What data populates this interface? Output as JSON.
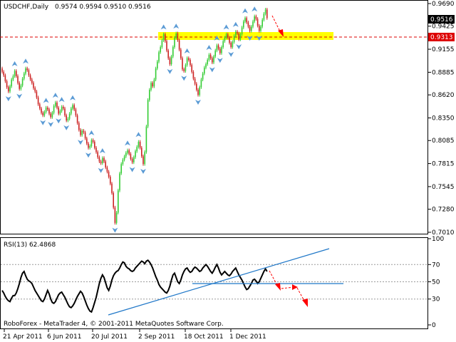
{
  "header": {
    "symbol_timeframe": "USDCHF,Daily",
    "ohlc": "0.9574 0.9594 0.9510 0.9516"
  },
  "main_price_labels": [
    "0.9690",
    "0.9425",
    "0.9155",
    "0.8885",
    "0.8620",
    "0.8350",
    "0.8085",
    "0.7815",
    "0.7545",
    "0.7280",
    "0.7010"
  ],
  "current_price_label": "0.9516",
  "support_price_label": "0.9313",
  "rsi": {
    "title": "RSI(13) 62.4868",
    "scale_labels": [
      "100",
      "70",
      "50",
      "30",
      "0"
    ]
  },
  "date_labels": [
    "21 Apr 2011",
    "6 Jun 2011",
    "20 Jul 2011",
    "2 Sep 2011",
    "18 Oct 2011",
    "1 Dec 2011"
  ],
  "watermark": "RoboForex - MetaTrader 4, © 2001-2011 MetaQuotes Software Corp.",
  "colors": {
    "bull": "#33cc33",
    "bear": "#cc2222",
    "fractal": "#5b9bd5",
    "support": "#dd0000",
    "highlight": "#ffff00",
    "trendline": "#1f77c8",
    "forecast_arrow": "#ff0000",
    "current_price_bg": "#000000",
    "support_price_bg": "#dd0000"
  },
  "chart_data": [
    {
      "type": "candlestick",
      "title": "USDCHF,Daily",
      "ylim": [
        0.701,
        0.969
      ],
      "yticks": [
        0.969,
        0.9425,
        0.9155,
        0.8885,
        0.862,
        0.835,
        0.8085,
        0.7815,
        0.7545,
        0.728,
        0.701
      ],
      "xticks": [
        "21 Apr 2011",
        "6 Jun 2011",
        "20 Jul 2011",
        "2 Sep 2011",
        "18 Oct 2011",
        "1 Dec 2011"
      ],
      "close": [
        0.889,
        0.885,
        0.878,
        0.871,
        0.866,
        0.872,
        0.88,
        0.884,
        0.89,
        0.884,
        0.876,
        0.869,
        0.873,
        0.881,
        0.887,
        0.893,
        0.891,
        0.885,
        0.88,
        0.876,
        0.87,
        0.866,
        0.859,
        0.851,
        0.846,
        0.841,
        0.838,
        0.842,
        0.847,
        0.845,
        0.84,
        0.836,
        0.841,
        0.849,
        0.853,
        0.847,
        0.84,
        0.843,
        0.848,
        0.846,
        0.838,
        0.832,
        0.834,
        0.84,
        0.846,
        0.85,
        0.845,
        0.838,
        0.829,
        0.821,
        0.815,
        0.82,
        0.818,
        0.811,
        0.805,
        0.8,
        0.802,
        0.809,
        0.807,
        0.8,
        0.795,
        0.789,
        0.784,
        0.782,
        0.788,
        0.784,
        0.777,
        0.772,
        0.766,
        0.758,
        0.747,
        0.73,
        0.712,
        0.724,
        0.75,
        0.77,
        0.781,
        0.786,
        0.79,
        0.794,
        0.797,
        0.793,
        0.787,
        0.783,
        0.789,
        0.796,
        0.801,
        0.807,
        0.8,
        0.79,
        0.781,
        0.795,
        0.825,
        0.856,
        0.868,
        0.876,
        0.872,
        0.88,
        0.893,
        0.901,
        0.912,
        0.918,
        0.926,
        0.933,
        0.925,
        0.914,
        0.905,
        0.898,
        0.907,
        0.918,
        0.929,
        0.934,
        0.926,
        0.915,
        0.905,
        0.892,
        0.89,
        0.897,
        0.905,
        0.903,
        0.897,
        0.889,
        0.881,
        0.875,
        0.868,
        0.862,
        0.871,
        0.88,
        0.887,
        0.894,
        0.898,
        0.903,
        0.909,
        0.905,
        0.9,
        0.907,
        0.914,
        0.92,
        0.916,
        0.911,
        0.918,
        0.925,
        0.929,
        0.933,
        0.929,
        0.923,
        0.918,
        0.924,
        0.931,
        0.936,
        0.934,
        0.927,
        0.933,
        0.941,
        0.948,
        0.952,
        0.947,
        0.942,
        0.937,
        0.942,
        0.948,
        0.954,
        0.951,
        0.943,
        0.937,
        0.942,
        0.95,
        0.957,
        0.962,
        0.952
      ]
    },
    {
      "type": "line",
      "title": "RSI(13) 62.4868",
      "ylim": [
        0,
        100
      ],
      "yticks": [
        100,
        70,
        50,
        30,
        0
      ],
      "levels": [
        70,
        50,
        30
      ],
      "current_value": 62.4868,
      "values": [
        40,
        37,
        33,
        30,
        28,
        27,
        31,
        34,
        34,
        37,
        42,
        48,
        55,
        60,
        62,
        57,
        53,
        51,
        50,
        48,
        44,
        40,
        37,
        34,
        31,
        28,
        27,
        30,
        35,
        40,
        36,
        30,
        26,
        25,
        27,
        31,
        35,
        37,
        38,
        35,
        32,
        28,
        24,
        21,
        20,
        22,
        25,
        29,
        33,
        36,
        39,
        37,
        33,
        28,
        23,
        19,
        16,
        15,
        20,
        26,
        32,
        40,
        48,
        54,
        58,
        55,
        49,
        43,
        40,
        45,
        52,
        57,
        60,
        62,
        63,
        66,
        70,
        73,
        72,
        68,
        66,
        65,
        63,
        62,
        63,
        66,
        68,
        70,
        72,
        74,
        73,
        71,
        74,
        75,
        73,
        70,
        66,
        61,
        56,
        52,
        47,
        44,
        42,
        40,
        38,
        37,
        40,
        45,
        52,
        58,
        60,
        55,
        50,
        48,
        52,
        58,
        62,
        65,
        66,
        63,
        61,
        62,
        65,
        67,
        66,
        64,
        62,
        63,
        66,
        68,
        70,
        68,
        65,
        62,
        60,
        63,
        67,
        70,
        66,
        61,
        58,
        60,
        62,
        60,
        58,
        57,
        59,
        62,
        64,
        66,
        62,
        58,
        55,
        52,
        48,
        44,
        41,
        42,
        45,
        48,
        52,
        53,
        51,
        48,
        50,
        54,
        58,
        62,
        65,
        62
      ],
      "trendlines": [
        {
          "from": {
            "date": "20 Jul 2011",
            "rsi": 14
          },
          "to": {
            "date": "1 Dec 2011",
            "rsi": 66
          }
        },
        {
          "from": {
            "date": "18 Oct 2011",
            "rsi": 50
          },
          "to": {
            "date": "1 Dec 2011",
            "rsi": 50
          }
        }
      ]
    }
  ]
}
